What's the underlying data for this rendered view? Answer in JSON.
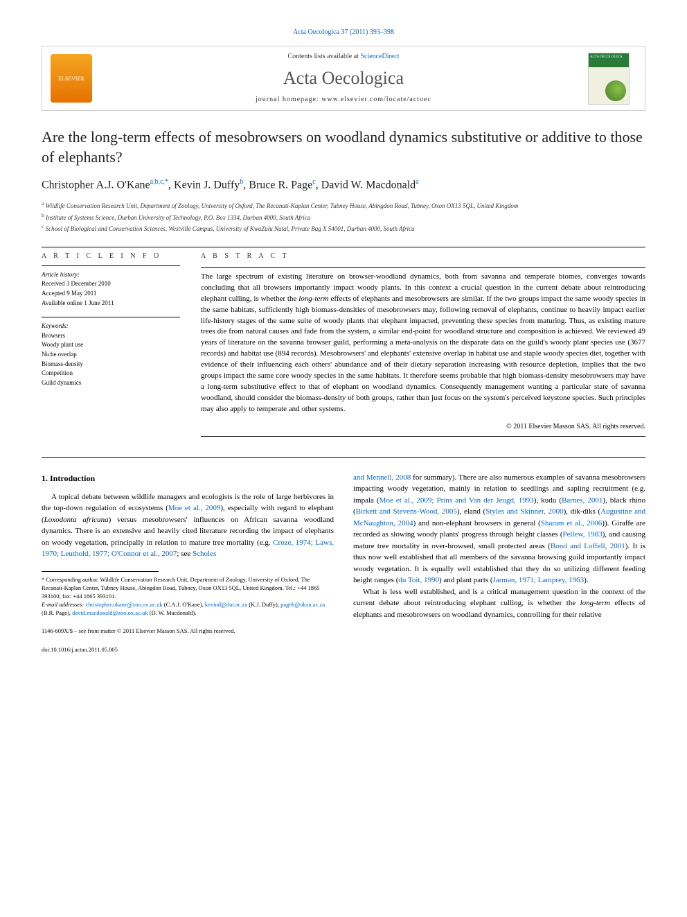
{
  "header": {
    "citation": "Acta Oecologica 37 (2011) 393–398",
    "contents_prefix": "Contents lists available at ",
    "contents_link": "ScienceDirect",
    "journal_name": "Acta Oecologica",
    "homepage_prefix": "journal homepage: ",
    "homepage_url": "www.elsevier.com/locate/actoec",
    "elsevier_label": "ELSEVIER",
    "cover_label": "ACTA OECOLOGICA"
  },
  "title": "Are the long-term effects of mesobrowsers on woodland dynamics substitutive or additive to those of elephants?",
  "authors": {
    "a1_name": "Christopher A.J. O'Kane",
    "a1_sup": "a,b,c,*",
    "a2_name": "Kevin J. Duffy",
    "a2_sup": "b",
    "a3_name": "Bruce R. Page",
    "a3_sup": "c",
    "a4_name": "David W. Macdonald",
    "a4_sup": "a"
  },
  "affiliations": {
    "a": "Wildlife Conservation Research Unit, Department of Zoology, University of Oxford, The Recanati-Kaplan Center, Tubney House, Abingdon Road, Tubney, Oxon OX13 5QL, United Kingdom",
    "b": "Institute of Systems Science, Durban University of Technology, P.O. Box 1334, Durban 4000, South Africa",
    "c": "School of Biological and Conservation Sciences, Westville Campus, University of KwaZulu Natal, Private Bag X 54001, Durban 4000, South Africa"
  },
  "article_info": {
    "heading": "A R T I C L E   I N F O",
    "history_label": "Article history:",
    "received": "Received 3 December 2010",
    "accepted": "Accepted 9 May 2011",
    "online": "Available online 1 June 2011",
    "keywords_label": "Keywords:",
    "keywords": [
      "Browsers",
      "Woody plant use",
      "Niche overlap",
      "Biomass-density",
      "Competition",
      "Guild dynamics"
    ]
  },
  "abstract": {
    "heading": "A B S T R A C T",
    "text_1": "The large spectrum of existing literature on browser-woodland dynamics, both from savanna and temperate biomes, converges towards concluding that all browsers importantly impact woody plants. In this context a crucial question in the current debate about reintroducing elephant culling, is whether the ",
    "em_1": "long-term",
    "text_2": " effects of elephants and mesobrowsers are similar. If the two groups impact the same woody species in the same habitats, sufficiently high biomass-densities of mesobrowsers may, following removal of elephants, continue to heavily impact earlier life-history stages of the same suite of woody plants that elephant impacted, preventing these species from maturing. Thus, as existing mature trees die from natural causes and fade from the system, a similar end-point for woodland structure and composition is achieved. We reviewed 49 years of literature on the savanna browser guild, performing a meta-analysis on the disparate data on the guild's woody plant species use (3677 records) and habitat use (894 records). Mesobrowsers' and elephants' extensive overlap in habitat use and staple woody species diet, together with evidence of their influencing each others' abundance and of their dietary separation increasing with resource depletion, implies that the two groups impact the same core woody species in the same habitats. It therefore seems probable that high biomass-density mesobrowsers may have a long-term substitutive effect to that of elephant on woodland dynamics. Consequently management wanting a particular state of savanna woodland, should consider the biomass-density of both groups, rather than just focus on the system's perceived keystone species. Such principles may also apply to temperate and other systems.",
    "copyright": "© 2011 Elsevier Masson SAS. All rights reserved."
  },
  "body": {
    "section_1_heading": "1. Introduction",
    "col1_p1_a": "A topical debate between wildlife managers and ecologists is the role of large herbivores in the top-down regulation of ecosystems (",
    "col1_ref1": "Moe et al., 2009",
    "col1_p1_b": "), especially with regard to elephant (",
    "col1_em1": "Loxodonta africana",
    "col1_p1_c": ") versus mesobrowsers' influences on African savanna woodland dynamics. There is an extensive and heavily cited literature recording the impact of elephants on woody vegetation, principally in relation to mature tree mortality (e.g. ",
    "col1_ref2": "Croze, 1974; Laws, 1970; Leuthold, 1977; O'Connor et al., 2007",
    "col1_p1_d": "; see ",
    "col1_ref3": "Scholes",
    "col2_ref1": "and Mennell, 2008",
    "col2_p1_a": " for summary). There are also numerous examples of savanna mesobrowsers impacting woody vegetation, mainly in relation to seedlings and sapling recruitment (e.g. impala (",
    "col2_ref2": "Moe et al., 2009; Prins and Van der Jeugd, 1993",
    "col2_p1_b": "), kudu (",
    "col2_ref3": "Barnes, 2001",
    "col2_p1_c": "), black rhino (",
    "col2_ref4": "Birkett and Stevens-Wood, 2005",
    "col2_p1_d": "), eland (",
    "col2_ref5": "Styles and Skinner, 2000",
    "col2_p1_e": "), dik-diks (",
    "col2_ref6": "Augustine and McNaughton, 2004",
    "col2_p1_f": ") and non-elephant browsers in general (",
    "col2_ref7": "Sharam et al., 2006",
    "col2_p1_g": ")). Giraffe are recorded as slowing woody plants' progress through height classes (",
    "col2_ref8": "Pellew, 1983",
    "col2_p1_h": "), and causing mature tree mortality in over-browsed, small protected areas (",
    "col2_ref9": "Bond and Loffell, 2001",
    "col2_p1_i": "). It is thus now well established that all members of the savanna browsing guild importantly impact woody vegetation. It is equally well established that they do so utilizing different feeding height ranges (",
    "col2_ref10": "du Toit, 1990",
    "col2_p1_j": ") and plant parts (",
    "col2_ref11": "Jarman, 1971; Lamprey, 1963",
    "col2_p1_k": ").",
    "col2_p2_a": "What is less well established, and is a critical management question in the context of the current debate about reintroducing elephant culling, is whether the ",
    "col2_em1": "long-term",
    "col2_p2_b": " effects of elephants and mesobrowsers on woodland dynamics, controlling for their relative"
  },
  "footnote": {
    "corr_label": "* Corresponding author. Wildlife Conservation Research Unit, Department of Zoology, University of Oxford, The Recanati-Kaplan Center, Tubney House, Abingdon Road, Tubney, Oxon OX13 5QL, United Kingdom. Tel.: +44 1865 393100; fax: +44 1865 393101.",
    "email_label": "E-mail addresses: ",
    "e1": "christopher.okane@zoo.ox.ac.uk",
    "e1_who": " (C.A.J. O'Kane), ",
    "e2": "kevind@dut.ac.za",
    "e2_who": " (K.J. Duffy), ",
    "e3": "pageb@ukzn.ac.za",
    "e3_who": " (B.R. Page), ",
    "e4": "david.macdonald@zoo.ox.ac.uk",
    "e4_who": " (D. W. Macdonald)."
  },
  "footer": {
    "line1": "1146-609X/$ – see front matter © 2011 Elsevier Masson SAS. All rights reserved.",
    "line2": "doi:10.1016/j.actao.2011.05.005"
  },
  "style": {
    "link_color": "#0066cc",
    "text_color": "#000000",
    "muted_color": "#555555",
    "border_color": "#cccccc"
  }
}
